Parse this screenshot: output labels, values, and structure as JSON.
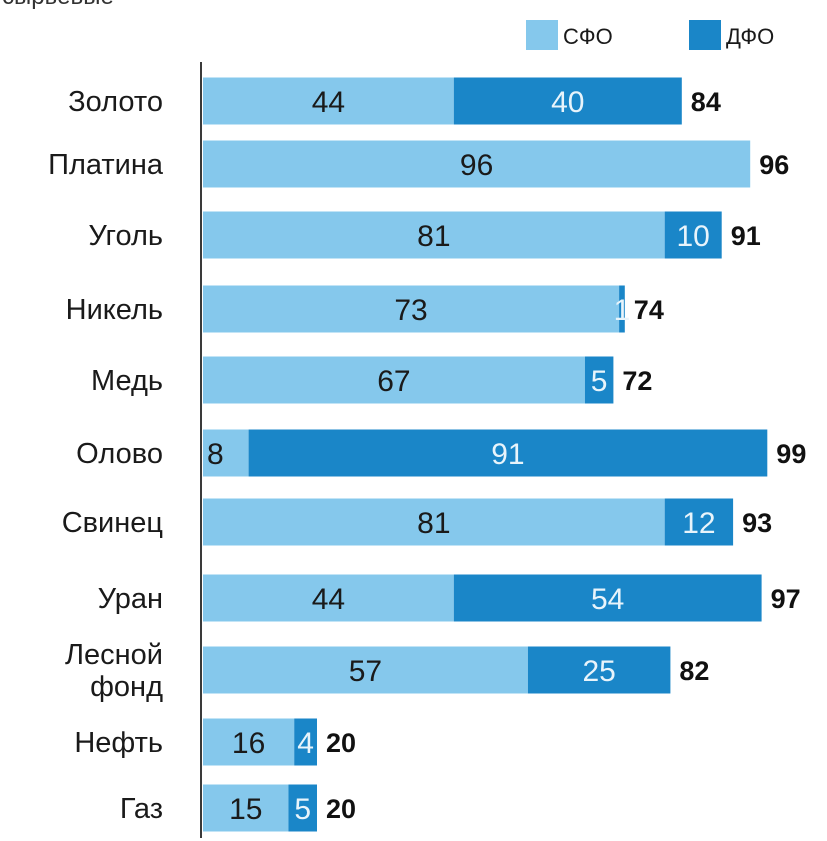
{
  "top_fragment": "сырьевые",
  "colors": {
    "sfo": "#85c8ec",
    "dfo": "#1a86c8",
    "axis": "#3a3a3a",
    "sfo_text": "#1a1a1a",
    "dfo_text": "#e8f4fb"
  },
  "chart_data": {
    "type": "bar",
    "orientation": "horizontal",
    "stacked": true,
    "categories": [
      "Золото",
      "Платина",
      "Уголь",
      "Никель",
      "Медь",
      "Олово",
      "Свинец",
      "Уран",
      "Лесной фонд",
      "Нефть",
      "Газ"
    ],
    "category_lines": [
      [
        "Золото"
      ],
      [
        "Платина"
      ],
      [
        "Уголь"
      ],
      [
        "Никель"
      ],
      [
        "Медь"
      ],
      [
        "Олово"
      ],
      [
        "Свинец"
      ],
      [
        "Уран"
      ],
      [
        "Лесной",
        "фонд"
      ],
      [
        "Нефть"
      ],
      [
        "Газ"
      ]
    ],
    "series": [
      {
        "name": "СФО",
        "values": [
          44,
          96,
          81,
          73,
          67,
          8,
          81,
          44,
          57,
          16,
          15
        ]
      },
      {
        "name": "ДФО",
        "values": [
          40,
          0,
          10,
          1,
          5,
          91,
          12,
          54,
          25,
          4,
          5
        ]
      }
    ],
    "totals": [
      84,
      96,
      91,
      74,
      72,
      99,
      93,
      97,
      82,
      20,
      20
    ],
    "legend": [
      "СФО",
      "ДФО"
    ],
    "legend_position": "top-right",
    "xlim": [
      0,
      100
    ],
    "title": "",
    "xlabel": "",
    "ylabel": ""
  }
}
